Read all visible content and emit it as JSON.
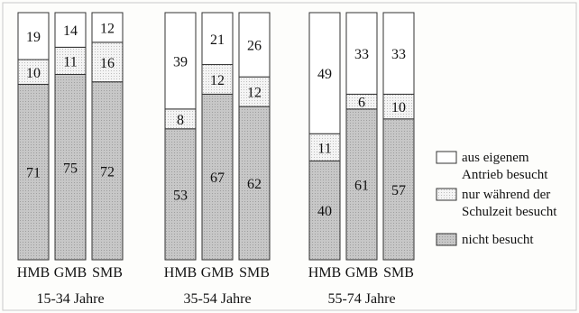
{
  "chart_data": {
    "type": "bar",
    "stacked": true,
    "orientation": "vertical",
    "groups": [
      {
        "label": "15-34 Jahre",
        "categories": [
          "HMB",
          "GMB",
          "SMB"
        ]
      },
      {
        "label": "35-54 Jahre",
        "categories": [
          "HMB",
          "GMB",
          "SMB"
        ]
      },
      {
        "label": "55-74 Jahre",
        "categories": [
          "HMB",
          "GMB",
          "SMB"
        ]
      }
    ],
    "series": [
      {
        "name": "nicht besucht",
        "values": [
          71,
          75,
          72,
          53,
          67,
          62,
          40,
          61,
          57
        ],
        "color": "#c2c2c2"
      },
      {
        "name": "nur während der Schulzeit besucht",
        "values": [
          10,
          11,
          16,
          8,
          12,
          12,
          11,
          6,
          10
        ],
        "color": "#eeeeee"
      },
      {
        "name": "aus eigenem Antrieb besucht",
        "values": [
          19,
          14,
          12,
          39,
          21,
          26,
          49,
          33,
          33
        ],
        "color": "#ffffff"
      }
    ],
    "legend": [
      {
        "lines": [
          "aus eigenem",
          "Antrieb besucht"
        ],
        "color": "#ffffff"
      },
      {
        "lines": [
          "nur während der",
          "Schulzeit besucht"
        ],
        "color": "#eeeeee"
      },
      {
        "lines": [
          "nicht besucht"
        ],
        "color": "#c2c2c2"
      }
    ],
    "legend_position": "right",
    "ylim": [
      0,
      100
    ],
    "grid": false,
    "title": "",
    "xlabel": "",
    "ylabel": ""
  }
}
